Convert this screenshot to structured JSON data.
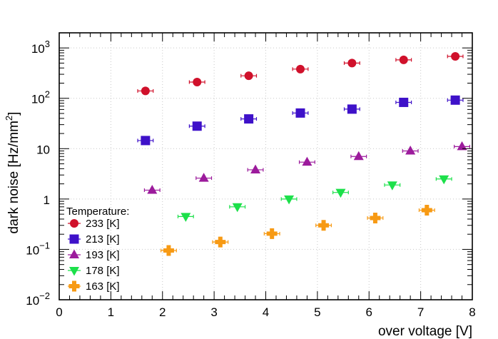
{
  "chart_data": {
    "type": "scatter",
    "title": "",
    "xlabel": "over voltage [V]",
    "ylabel_parts": [
      "dark noise [Hz/mm",
      "2",
      "]"
    ],
    "xlim": [
      0,
      8
    ],
    "ylim_log10": [
      -2,
      3.3
    ],
    "yscale": "log",
    "grid": true,
    "x_tick_labels": [
      "0",
      "1",
      "2",
      "3",
      "4",
      "5",
      "6",
      "7",
      "8"
    ],
    "y_tick_labels": [
      {
        "value": 0.01,
        "base": "10",
        "exp": "−2"
      },
      {
        "value": 0.1,
        "base": "10",
        "exp": "−1"
      },
      {
        "value": 1,
        "base": "1",
        "exp": ""
      },
      {
        "value": 10,
        "base": "10",
        "exp": ""
      },
      {
        "value": 100,
        "base": "10",
        "exp": "2"
      },
      {
        "value": 1000,
        "base": "10",
        "exp": "3"
      }
    ],
    "legend_title": "Temperature:",
    "legend_position": "bottom-left",
    "x_error": 0.15,
    "series": [
      {
        "name": "233 [K]",
        "marker": "circle",
        "color": "#d0112b",
        "x": [
          1.67,
          2.67,
          3.67,
          4.67,
          5.67,
          6.67,
          7.67
        ],
        "y": [
          140,
          210,
          280,
          380,
          500,
          580,
          680
        ]
      },
      {
        "name": "213 [K]",
        "marker": "square",
        "color": "#3e11c9",
        "x": [
          1.67,
          2.67,
          3.67,
          4.67,
          5.67,
          6.67,
          7.67
        ],
        "y": [
          14.5,
          28,
          39,
          51,
          61,
          83,
          92
        ]
      },
      {
        "name": "193 [K]",
        "marker": "triangle-up",
        "color": "#9c1b9c",
        "x": [
          1.8,
          2.8,
          3.8,
          4.8,
          5.8,
          6.8,
          7.8
        ],
        "y": [
          1.5,
          2.6,
          3.8,
          5.4,
          7.0,
          9.0,
          11
        ]
      },
      {
        "name": "178 [K]",
        "marker": "triangle-down",
        "color": "#1ce04a",
        "x": [
          2.45,
          3.45,
          4.45,
          5.45,
          6.45,
          7.45
        ],
        "y": [
          0.45,
          0.7,
          1.0,
          1.35,
          1.9,
          2.5
        ]
      },
      {
        "name": "163 [K]",
        "marker": "cross",
        "color": "#f79a14",
        "x": [
          2.12,
          3.12,
          4.12,
          5.12,
          6.12,
          7.12
        ],
        "y": [
          0.095,
          0.14,
          0.205,
          0.3,
          0.42,
          0.6
        ]
      }
    ]
  }
}
